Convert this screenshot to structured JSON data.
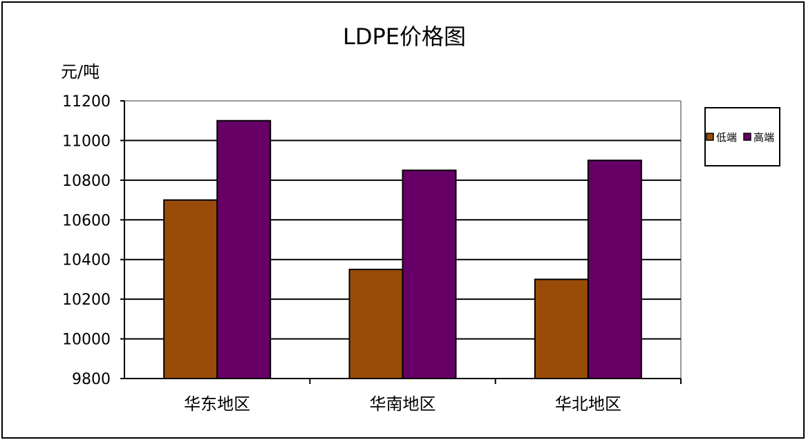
{
  "chart_data": {
    "type": "bar",
    "title": "LDPE价格图",
    "ylabel": "元/吨",
    "xlabel": "",
    "categories": [
      "华东地区",
      "华南地区",
      "华北地区"
    ],
    "series": [
      {
        "name": "低端",
        "values": [
          10700,
          10350,
          10300
        ],
        "color": "#994C08"
      },
      {
        "name": "高端",
        "values": [
          11100,
          10850,
          10900
        ],
        "color": "#660066"
      }
    ],
    "ylim": [
      9800,
      11200
    ],
    "yticks": [
      9800,
      10000,
      10200,
      10400,
      10600,
      10800,
      11000,
      11200
    ],
    "grid": true,
    "legend": "right"
  }
}
